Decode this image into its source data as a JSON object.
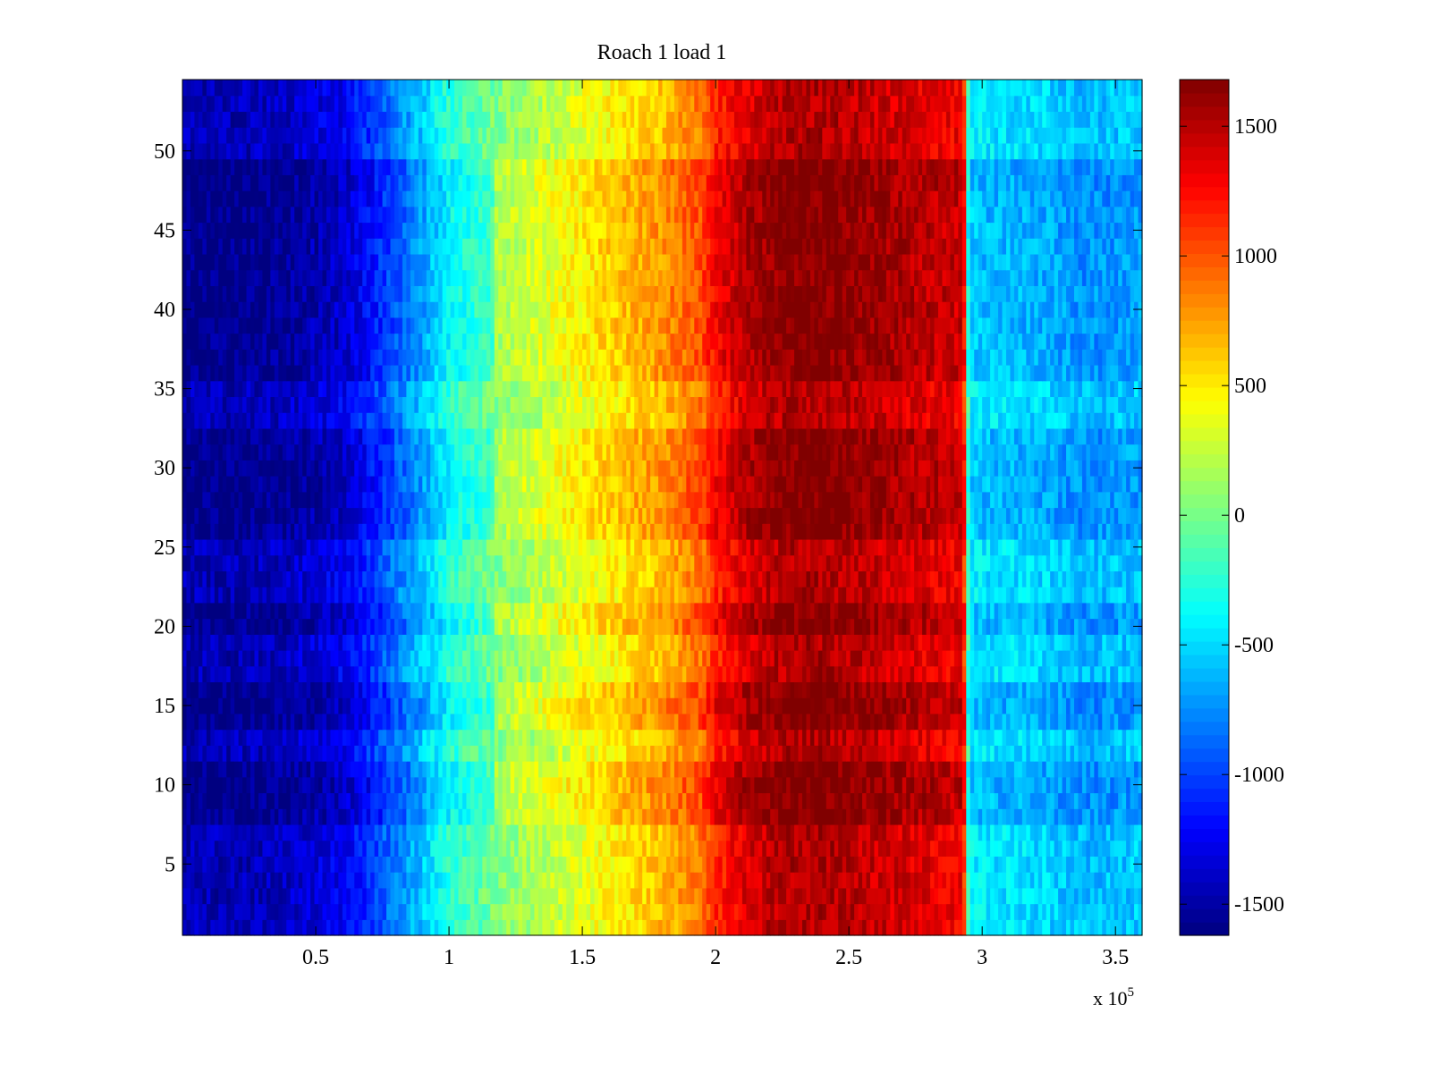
{
  "chart_data": {
    "type": "heatmap",
    "title": "Roach 1 load 1",
    "xlabel": "",
    "ylabel": "",
    "x_multiplier_label": {
      "base": "x 10",
      "exponent": "5"
    },
    "xlim": [
      0,
      3.6
    ],
    "ylim": [
      0.5,
      54.5
    ],
    "x_ticks": [
      {
        "value": 0.5,
        "label": "0.5"
      },
      {
        "value": 1,
        "label": "1"
      },
      {
        "value": 1.5,
        "label": "1.5"
      },
      {
        "value": 2,
        "label": "2"
      },
      {
        "value": 2.5,
        "label": "2.5"
      },
      {
        "value": 3,
        "label": "3"
      },
      {
        "value": 3.5,
        "label": "3.5"
      }
    ],
    "y_ticks": [
      {
        "value": 5,
        "label": "5"
      },
      {
        "value": 10,
        "label": "10"
      },
      {
        "value": 15,
        "label": "15"
      },
      {
        "value": 20,
        "label": "20"
      },
      {
        "value": 25,
        "label": "25"
      },
      {
        "value": 30,
        "label": "30"
      },
      {
        "value": 35,
        "label": "35"
      },
      {
        "value": 40,
        "label": "40"
      },
      {
        "value": 45,
        "label": "45"
      },
      {
        "value": 50,
        "label": "50"
      }
    ],
    "colorbar": {
      "colormap": "jet",
      "clim": [
        -1620,
        1680
      ],
      "ticks": [
        {
          "value": 1500,
          "label": "1500"
        },
        {
          "value": 1000,
          "label": "1000"
        },
        {
          "value": 500,
          "label": "500"
        },
        {
          "value": 0,
          "label": "0"
        },
        {
          "value": -500,
          "label": "-500"
        },
        {
          "value": -1000,
          "label": "-1000"
        },
        {
          "value": -1500,
          "label": "-1500"
        }
      ]
    },
    "x_profile": {
      "x": [
        0,
        0.2,
        0.4,
        0.6,
        0.7,
        0.8,
        0.9,
        1.0,
        1.2,
        1.4,
        1.6,
        1.8,
        1.95,
        2.0,
        2.1,
        2.2,
        2.3,
        2.4,
        2.5,
        2.6,
        2.7,
        2.8,
        2.93,
        2.95,
        3.0,
        3.2,
        3.4,
        3.6
      ],
      "values": [
        -1450,
        -1450,
        -1400,
        -1250,
        -1050,
        -800,
        -550,
        -250,
        50,
        250,
        450,
        650,
        900,
        1150,
        1350,
        1480,
        1530,
        1530,
        1500,
        1450,
        1400,
        1350,
        1300,
        -400,
        -450,
        -500,
        -600,
        -550
      ]
    },
    "row_modulation": {
      "rows": [
        8,
        9,
        10,
        11,
        14,
        15,
        16,
        20,
        21,
        26,
        27,
        28,
        29,
        30,
        31,
        32,
        36,
        37,
        38,
        39,
        40,
        41,
        42,
        43,
        44,
        45,
        46,
        47,
        48,
        49
      ],
      "delta": [
        150,
        160,
        180,
        150,
        150,
        180,
        150,
        150,
        140,
        140,
        160,
        160,
        160,
        150,
        140,
        140,
        130,
        130,
        140,
        140,
        140,
        140,
        140,
        140,
        140,
        150,
        150,
        160,
        170,
        180
      ]
    },
    "noise_amplitude": 320
  }
}
